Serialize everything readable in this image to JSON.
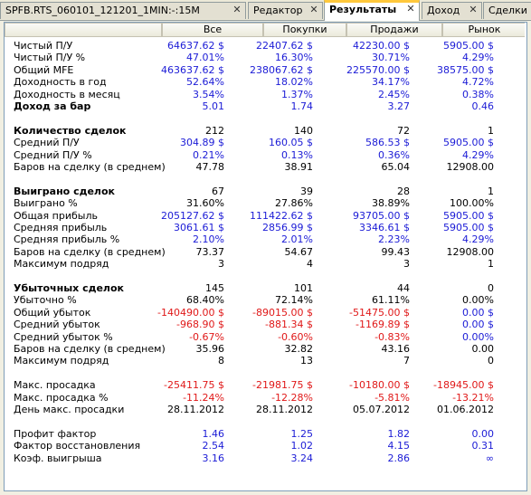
{
  "tabs": [
    {
      "label": "SPFB.RTS_060101_121201_1MIN:-:15M",
      "active": false
    },
    {
      "label": "Редактор",
      "active": false
    },
    {
      "label": "Результаты",
      "active": true
    },
    {
      "label": "Доход",
      "active": false
    },
    {
      "label": "Сделки",
      "active": false
    }
  ],
  "columns": [
    "Все",
    "Покупки",
    "Продажи",
    "Рынок"
  ],
  "rows": [
    {
      "label": "Чистый П/У",
      "bold": false,
      "v": [
        "64637.62 $",
        "22407.62 $",
        "42230.00 $",
        "5905.00 $"
      ],
      "c": [
        "blue",
        "blue",
        "blue",
        "blue"
      ]
    },
    {
      "label": "Чистый П/У %",
      "bold": false,
      "v": [
        "47.01%",
        "16.30%",
        "30.71%",
        "4.29%"
      ],
      "c": [
        "blue",
        "blue",
        "blue",
        "blue"
      ]
    },
    {
      "label": "Общий MFE",
      "bold": false,
      "v": [
        "463637.62 $",
        "238067.62 $",
        "225570.00 $",
        "38575.00 $"
      ],
      "c": [
        "blue",
        "blue",
        "blue",
        "blue"
      ]
    },
    {
      "label": "Доходность в год",
      "bold": false,
      "v": [
        "52.64%",
        "18.02%",
        "34.17%",
        "4.72%"
      ],
      "c": [
        "blue",
        "blue",
        "blue",
        "blue"
      ]
    },
    {
      "label": "Доходность в месяц",
      "bold": false,
      "v": [
        "3.54%",
        "1.37%",
        "2.45%",
        "0.38%"
      ],
      "c": [
        "blue",
        "blue",
        "blue",
        "blue"
      ]
    },
    {
      "label": "Доход за бар",
      "bold": true,
      "v": [
        "5.01",
        "1.74",
        "3.27",
        "0.46"
      ],
      "c": [
        "blue",
        "blue",
        "blue",
        "blue"
      ]
    },
    {
      "gap": true
    },
    {
      "label": "Количество сделок",
      "bold": true,
      "v": [
        "212",
        "140",
        "72",
        "1"
      ],
      "c": [
        "black",
        "black",
        "black",
        "black"
      ]
    },
    {
      "label": "Средний П/У",
      "bold": false,
      "v": [
        "304.89 $",
        "160.05 $",
        "586.53 $",
        "5905.00 $"
      ],
      "c": [
        "blue",
        "blue",
        "blue",
        "blue"
      ]
    },
    {
      "label": "Средний П/У %",
      "bold": false,
      "v": [
        "0.21%",
        "0.13%",
        "0.36%",
        "4.29%"
      ],
      "c": [
        "blue",
        "blue",
        "blue",
        "blue"
      ]
    },
    {
      "label": "Баров на сделку (в среднем)",
      "bold": false,
      "v": [
        "47.78",
        "38.91",
        "65.04",
        "12908.00"
      ],
      "c": [
        "black",
        "black",
        "black",
        "black"
      ]
    },
    {
      "gap": true
    },
    {
      "label": "Выиграно сделок",
      "bold": true,
      "v": [
        "67",
        "39",
        "28",
        "1"
      ],
      "c": [
        "black",
        "black",
        "black",
        "black"
      ]
    },
    {
      "label": "Выиграно %",
      "bold": false,
      "v": [
        "31.60%",
        "27.86%",
        "38.89%",
        "100.00%"
      ],
      "c": [
        "black",
        "black",
        "black",
        "black"
      ]
    },
    {
      "label": "Общая прибыль",
      "bold": false,
      "v": [
        "205127.62 $",
        "111422.62 $",
        "93705.00 $",
        "5905.00 $"
      ],
      "c": [
        "blue",
        "blue",
        "blue",
        "blue"
      ]
    },
    {
      "label": "Средняя прибыль",
      "bold": false,
      "v": [
        "3061.61 $",
        "2856.99 $",
        "3346.61 $",
        "5905.00 $"
      ],
      "c": [
        "blue",
        "blue",
        "blue",
        "blue"
      ]
    },
    {
      "label": "Средняя прибыль %",
      "bold": false,
      "v": [
        "2.10%",
        "2.01%",
        "2.23%",
        "4.29%"
      ],
      "c": [
        "blue",
        "blue",
        "blue",
        "blue"
      ]
    },
    {
      "label": "Баров на сделку (в среднем)",
      "bold": false,
      "v": [
        "73.37",
        "54.67",
        "99.43",
        "12908.00"
      ],
      "c": [
        "black",
        "black",
        "black",
        "black"
      ]
    },
    {
      "label": "Максимум подряд",
      "bold": false,
      "v": [
        "3",
        "4",
        "3",
        "1"
      ],
      "c": [
        "black",
        "black",
        "black",
        "black"
      ]
    },
    {
      "gap": true
    },
    {
      "label": "Убыточных сделок",
      "bold": true,
      "v": [
        "145",
        "101",
        "44",
        "0"
      ],
      "c": [
        "black",
        "black",
        "black",
        "black"
      ]
    },
    {
      "label": "Убыточно %",
      "bold": false,
      "v": [
        "68.40%",
        "72.14%",
        "61.11%",
        "0.00%"
      ],
      "c": [
        "black",
        "black",
        "black",
        "black"
      ]
    },
    {
      "label": "Общий убыток",
      "bold": false,
      "v": [
        "-140490.00 $",
        "-89015.00 $",
        "-51475.00 $",
        "0.00 $"
      ],
      "c": [
        "red",
        "red",
        "red",
        "blue"
      ]
    },
    {
      "label": "Средний убыток",
      "bold": false,
      "v": [
        "-968.90 $",
        "-881.34 $",
        "-1169.89 $",
        "0.00 $"
      ],
      "c": [
        "red",
        "red",
        "red",
        "blue"
      ]
    },
    {
      "label": "Средний убыток %",
      "bold": false,
      "v": [
        "-0.67%",
        "-0.60%",
        "-0.83%",
        "0.00%"
      ],
      "c": [
        "red",
        "red",
        "red",
        "blue"
      ]
    },
    {
      "label": "Баров на сделку (в среднем)",
      "bold": false,
      "v": [
        "35.96",
        "32.82",
        "43.16",
        "0.00"
      ],
      "c": [
        "black",
        "black",
        "black",
        "black"
      ]
    },
    {
      "label": "Максимум подряд",
      "bold": false,
      "v": [
        "8",
        "13",
        "7",
        "0"
      ],
      "c": [
        "black",
        "black",
        "black",
        "black"
      ]
    },
    {
      "gap": true
    },
    {
      "label": "Макс. просадка",
      "bold": false,
      "v": [
        "-25411.75 $",
        "-21981.75 $",
        "-10180.00 $",
        "-18945.00 $"
      ],
      "c": [
        "red",
        "red",
        "red",
        "red"
      ]
    },
    {
      "label": "Макс. просадка %",
      "bold": false,
      "v": [
        "-11.24%",
        "-12.28%",
        "-5.81%",
        "-13.21%"
      ],
      "c": [
        "red",
        "red",
        "red",
        "red"
      ]
    },
    {
      "label": "День макс. просадки",
      "bold": false,
      "v": [
        "28.11.2012",
        "28.11.2012",
        "05.07.2012",
        "01.06.2012"
      ],
      "c": [
        "black",
        "black",
        "black",
        "black"
      ]
    },
    {
      "gap": true
    },
    {
      "label": "Профит фактор",
      "bold": false,
      "v": [
        "1.46",
        "1.25",
        "1.82",
        "0.00"
      ],
      "c": [
        "blue",
        "blue",
        "blue",
        "blue"
      ]
    },
    {
      "label": "Фактор восстановления",
      "bold": false,
      "v": [
        "2.54",
        "1.02",
        "4.15",
        "0.31"
      ],
      "c": [
        "blue",
        "blue",
        "blue",
        "blue"
      ]
    },
    {
      "label": "Коэф. выигрыша",
      "bold": false,
      "v": [
        "3.16",
        "3.24",
        "2.86",
        "∞"
      ],
      "c": [
        "blue",
        "blue",
        "blue",
        "blue"
      ]
    }
  ]
}
